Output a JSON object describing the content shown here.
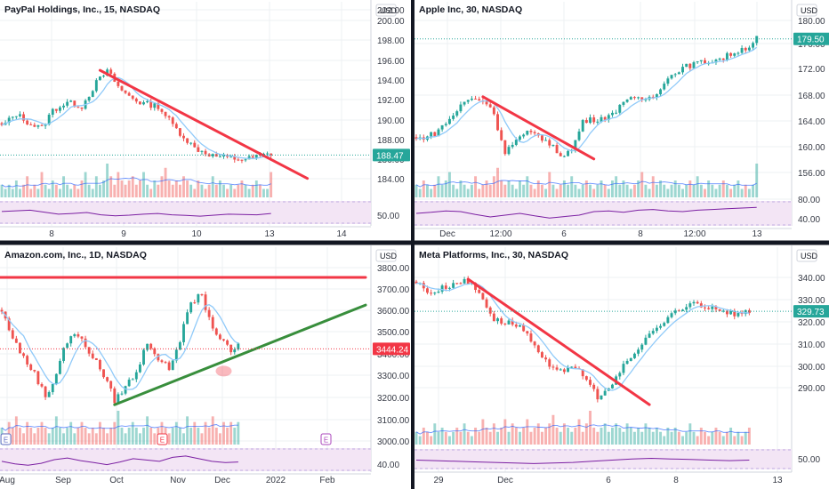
{
  "layout": "2x2",
  "colors": {
    "up": "#26a69a",
    "down": "#ef5350",
    "trend_red": "#f23645",
    "trend_green": "#388e3c",
    "ma": "#90caf9",
    "ma_blue": "#2962ff",
    "rsi_band": "#f3e5f5",
    "rsi_line": "#7b1fa2",
    "divider": "#131722",
    "text": "#131722",
    "axis_text": "#363a45",
    "grid": "#eef0f3",
    "price_tag_green": "#26a69a",
    "price_tag_red": "#f23645"
  },
  "chart_data": [
    {
      "type": "candlestick",
      "title": "PayPal Holdings, Inc., 15, NASDAQ",
      "currency": "USD",
      "y_ticks": [
        "202.00",
        "200.00",
        "198.00",
        "196.00",
        "194.00",
        "192.00",
        "190.00",
        "188.00",
        "186.00",
        "184.00",
        "50.00"
      ],
      "price_ylim": [
        184,
        202
      ],
      "x_ticks": [
        "8",
        "9",
        "10",
        "13",
        "14"
      ],
      "last_price": "188.47",
      "last_price_color": "green",
      "path": [
        [
          0,
          191.5
        ],
        [
          4,
          192.8
        ],
        [
          8,
          191.7
        ],
        [
          11,
          191.3
        ],
        [
          14,
          193.2
        ],
        [
          18,
          194.0
        ],
        [
          22,
          193.6
        ],
        [
          26,
          196.1
        ],
        [
          29,
          197.3
        ],
        [
          33,
          195.2
        ],
        [
          38,
          194.0
        ],
        [
          43,
          193.6
        ],
        [
          48,
          191.2
        ],
        [
          53,
          189.2
        ],
        [
          58,
          188.4
        ],
        [
          63,
          188.1
        ],
        [
          67,
          188.0
        ],
        [
          70,
          188.3
        ],
        [
          74,
          188.6
        ]
      ],
      "volume": [
        3,
        2,
        3,
        2,
        4,
        2,
        3,
        5,
        2,
        3,
        2,
        6,
        3,
        2,
        4,
        3,
        2,
        5,
        3,
        2,
        3,
        2,
        4,
        6,
        3,
        2,
        5,
        3,
        4,
        8,
        5,
        3,
        6,
        4,
        3,
        4,
        5,
        3,
        4,
        6,
        3,
        2,
        4,
        3,
        5,
        7,
        4,
        3,
        4,
        3,
        5,
        4,
        3,
        2,
        4,
        3,
        2,
        3,
        5,
        3,
        4,
        3,
        2,
        3,
        2,
        3,
        4,
        3,
        2,
        3,
        4,
        3,
        2,
        2,
        6
      ],
      "trendlines": [
        {
          "from": [
            27,
            197.4
          ],
          "to": [
            84,
            186.0
          ],
          "color": "red"
        }
      ],
      "markers": [],
      "rsi_series": [
        58,
        60,
        62,
        56,
        50,
        52,
        55,
        48,
        45,
        47,
        50,
        52,
        48,
        46,
        44,
        47,
        50,
        49,
        48,
        52
      ],
      "bars": 75
    },
    {
      "type": "candlestick",
      "title": "Apple Inc, 30, NASDAQ",
      "currency": "USD",
      "y_ticks": [
        "180.00",
        "176.00",
        "172.00",
        "168.00",
        "164.00",
        "160.00",
        "156.00",
        "80.00",
        "40.00"
      ],
      "price_ylim": [
        153.5,
        181.5
      ],
      "x_ticks": [
        "Dec",
        "12:00",
        "6",
        "8",
        "12:00",
        "13"
      ],
      "last_price": "179.50",
      "last_price_color": "green",
      "path": [
        [
          0,
          163.0
        ],
        [
          5,
          164.0
        ],
        [
          9,
          166.3
        ],
        [
          13,
          169.2
        ],
        [
          16,
          169.8
        ],
        [
          20,
          168.6
        ],
        [
          22,
          165.0
        ],
        [
          24,
          161.0
        ],
        [
          27,
          162.8
        ],
        [
          30,
          164.0
        ],
        [
          33,
          163.8
        ],
        [
          36,
          162.2
        ],
        [
          39,
          160.5
        ],
        [
          42,
          161.2
        ],
        [
          45,
          166.0
        ],
        [
          49,
          166.4
        ],
        [
          53,
          167.0
        ],
        [
          56,
          169.5
        ],
        [
          60,
          169.5
        ],
        [
          64,
          170.0
        ],
        [
          67,
          172.5
        ],
        [
          71,
          174.5
        ],
        [
          75,
          175.4
        ],
        [
          79,
          175.8
        ],
        [
          83,
          176.4
        ],
        [
          87,
          177.6
        ],
        [
          90,
          178.3
        ],
        [
          92,
          179.7
        ]
      ],
      "volume": [
        3,
        2,
        4,
        3,
        2,
        3,
        5,
        3,
        4,
        6,
        3,
        2,
        4,
        3,
        2,
        3,
        5,
        2,
        3,
        4,
        3,
        5,
        7,
        4,
        3,
        4,
        3,
        2,
        4,
        3,
        5,
        3,
        2,
        4,
        3,
        2,
        6,
        3,
        2,
        3,
        4,
        3,
        5,
        3,
        2,
        3,
        4,
        3,
        2,
        3,
        4,
        3,
        2,
        4,
        5,
        3,
        4,
        3,
        2,
        3,
        4,
        6,
        3,
        2,
        5,
        3,
        4,
        3,
        2,
        3,
        4,
        3,
        2,
        3,
        4,
        3,
        5,
        3,
        2,
        4,
        3,
        2,
        3,
        4,
        3,
        2,
        3,
        4,
        2,
        3,
        2,
        3,
        8
      ],
      "trendlines": [
        {
          "from": [
            18,
            170.0
          ],
          "to": [
            48,
            159.8
          ],
          "color": "red"
        }
      ],
      "markers": [],
      "rsi_series": [
        55,
        58,
        62,
        60,
        52,
        45,
        50,
        55,
        48,
        42,
        46,
        50,
        60,
        62,
        58,
        64,
        66,
        62,
        60,
        64,
        66,
        68,
        70,
        72
      ],
      "bars": 93
    },
    {
      "type": "candlestick",
      "title": "Amazon.com, Inc., 1D, NASDAQ",
      "currency": "USD",
      "y_ticks": [
        "3800.00",
        "3700.00",
        "3600.00",
        "3500.00",
        "3400.00",
        "3300.00",
        "3200.00",
        "3100.00",
        "3000.00",
        "40.00"
      ],
      "price_ylim": [
        2995,
        3830
      ],
      "x_ticks": [
        "Aug",
        "Sep",
        "Oct",
        "Nov",
        "Dec",
        "2022",
        "Feb"
      ],
      "last_price": "3444.24",
      "last_price_color": "red",
      "path": [
        [
          0,
          3620
        ],
        [
          3,
          3500
        ],
        [
          6,
          3400
        ],
        [
          9,
          3330
        ],
        [
          12,
          3220
        ],
        [
          14,
          3280
        ],
        [
          17,
          3450
        ],
        [
          20,
          3520
        ],
        [
          23,
          3460
        ],
        [
          26,
          3380
        ],
        [
          29,
          3290
        ],
        [
          31,
          3200
        ],
        [
          34,
          3270
        ],
        [
          37,
          3330
        ],
        [
          40,
          3480
        ],
        [
          43,
          3400
        ],
        [
          46,
          3350
        ],
        [
          49,
          3490
        ],
        [
          52,
          3660
        ],
        [
          55,
          3700
        ],
        [
          57,
          3580
        ],
        [
          59,
          3520
        ],
        [
          61,
          3470
        ],
        [
          63,
          3430
        ],
        [
          65,
          3460
        ]
      ],
      "volume": [
        3,
        2,
        4,
        3,
        5,
        3,
        2,
        4,
        3,
        2,
        3,
        4,
        3,
        2,
        3,
        5,
        3,
        2,
        3,
        4,
        2,
        3,
        4,
        3,
        2,
        3,
        2,
        4,
        3,
        2,
        3,
        4,
        6,
        3,
        2,
        3,
        4,
        3,
        2,
        3,
        5,
        3,
        2,
        3,
        4,
        3,
        2,
        3,
        4,
        3,
        2,
        5,
        3,
        4,
        3,
        2,
        4,
        3,
        5,
        3,
        2,
        4,
        3,
        4,
        3,
        4
      ],
      "trendlines": [
        {
          "from": [
            -2,
            3780
          ],
          "to": [
            100,
            3780
          ],
          "color": "red"
        },
        {
          "from": [
            31,
            3182
          ],
          "to": [
            100,
            3650
          ],
          "color": "green"
        }
      ],
      "markers": [
        {
          "type": "earnings",
          "label": "E",
          "x": 1
        },
        {
          "type": "earnings",
          "label": "E",
          "x": 44
        },
        {
          "type": "earnings",
          "label": "E",
          "x": 89
        },
        {
          "type": "circle",
          "x": 61,
          "y": 3340
        }
      ],
      "rsi_series": [
        50,
        42,
        38,
        44,
        55,
        60,
        52,
        46,
        40,
        48,
        58,
        54,
        50,
        62,
        66,
        58,
        50,
        46,
        48
      ],
      "bars": 66
    },
    {
      "type": "candlestick",
      "title": "Meta Platforms, Inc., 30, NASDAQ",
      "currency": "USD",
      "y_ticks": [
        "340.00",
        "330.00",
        "320.00",
        "310.00",
        "300.00",
        "290.00",
        "50.00"
      ],
      "price_ylim": [
        287,
        344
      ],
      "x_ticks": [
        "29",
        "Dec",
        "6",
        "8",
        "13"
      ],
      "last_price": "329.73",
      "last_price_color": "green",
      "path": [
        [
          0,
          339.0
        ],
        [
          4,
          335.6
        ],
        [
          8,
          337.6
        ],
        [
          12,
          339.5
        ],
        [
          15,
          338.5
        ],
        [
          18,
          334.0
        ],
        [
          21,
          327.0
        ],
        [
          25,
          326.0
        ],
        [
          28,
          325.0
        ],
        [
          31,
          320.0
        ],
        [
          34,
          314.0
        ],
        [
          37,
          312.0
        ],
        [
          40,
          311.0
        ],
        [
          44,
          311.0
        ],
        [
          47,
          306.0
        ],
        [
          49,
          302.5
        ],
        [
          51,
          303.5
        ],
        [
          54,
          308.0
        ],
        [
          57,
          314.0
        ],
        [
          60,
          317.0
        ],
        [
          63,
          323.0
        ],
        [
          66,
          325.0
        ],
        [
          69,
          328.5
        ],
        [
          72,
          330.0
        ],
        [
          75,
          333.0
        ],
        [
          78,
          331.0
        ],
        [
          81,
          331.0
        ],
        [
          84,
          329.5
        ],
        [
          87,
          328.8
        ],
        [
          90,
          329.7
        ]
      ],
      "volume": [
        3,
        2,
        4,
        3,
        2,
        5,
        3,
        4,
        3,
        2,
        3,
        4,
        3,
        5,
        3,
        2,
        4,
        3,
        6,
        4,
        3,
        5,
        3,
        4,
        6,
        3,
        5,
        4,
        3,
        4,
        6,
        3,
        4,
        5,
        3,
        4,
        5,
        7,
        4,
        3,
        5,
        4,
        3,
        4,
        6,
        3,
        5,
        8,
        4,
        3,
        4,
        5,
        3,
        4,
        5,
        4,
        3,
        5,
        4,
        3,
        4,
        3,
        5,
        4,
        3,
        4,
        3,
        2,
        4,
        3,
        4,
        3,
        2,
        3,
        5,
        3,
        2,
        4,
        3,
        2,
        3,
        4,
        3,
        2,
        3,
        4,
        2,
        3,
        2,
        3,
        4
      ],
      "trendlines": [
        {
          "from": [
            14,
            340.0
          ],
          "to": [
            63,
            299.8
          ],
          "color": "red"
        }
      ],
      "markers": [],
      "rsi_series": [
        52,
        50,
        48,
        46,
        44,
        42,
        40,
        42,
        44,
        48,
        52,
        56,
        58,
        56,
        54,
        52,
        50,
        52
      ],
      "bars": 91
    }
  ]
}
